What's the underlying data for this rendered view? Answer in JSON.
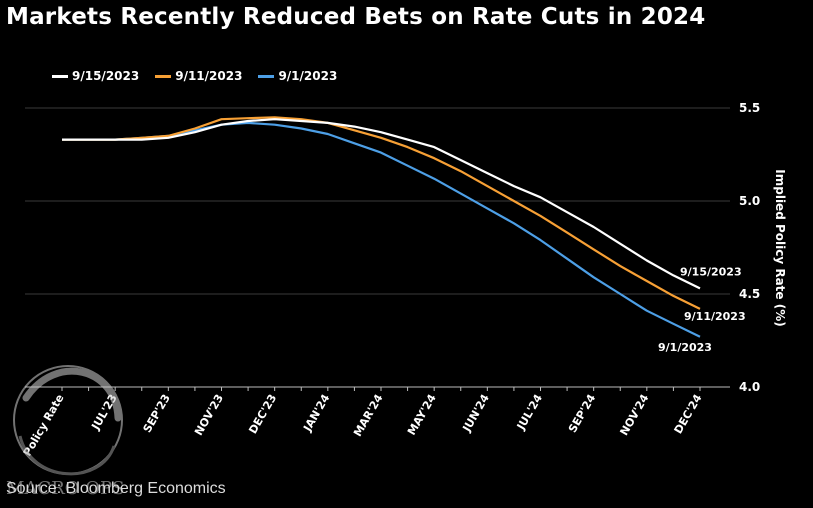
{
  "chart_data": {
    "type": "line",
    "title": "Markets Recently Reduced Bets on Rate Cuts in 2024",
    "ylabel": "Implied Policy Rate (%)",
    "xlabel": "",
    "ylim": [
      4.0,
      5.5
    ],
    "yticks": [
      "4.0",
      "4.5",
      "5.0",
      "5.5"
    ],
    "grid": true,
    "legend_position": "top-left",
    "categories": [
      "Policy Rate",
      "",
      "JUL'23",
      "",
      "SEP'23",
      "",
      "NOV'23",
      "",
      "DEC'23",
      "",
      "JAN'24",
      "",
      "MAR'24",
      "",
      "MAY'24",
      "",
      "JUN'24",
      "",
      "JUL'24",
      "",
      "SEP'24",
      "",
      "NOV'24",
      "",
      "DEC'24"
    ],
    "series": [
      {
        "name": "9/15/2023",
        "color": "#ffffff",
        "end_label": "9/15/2023",
        "values": [
          5.33,
          5.33,
          5.33,
          5.33,
          5.34,
          5.37,
          5.41,
          5.43,
          5.44,
          5.43,
          5.42,
          5.4,
          5.37,
          5.33,
          5.29,
          5.22,
          5.15,
          5.08,
          5.02,
          4.94,
          4.86,
          4.77,
          4.68,
          4.6,
          4.53
        ]
      },
      {
        "name": "9/11/2023",
        "color": "#f7a035",
        "end_label": "9/11/2023",
        "values": [
          5.33,
          5.33,
          5.33,
          5.34,
          5.35,
          5.39,
          5.44,
          5.445,
          5.45,
          5.44,
          5.42,
          5.38,
          5.34,
          5.29,
          5.23,
          5.16,
          5.08,
          5.0,
          4.92,
          4.83,
          4.74,
          4.65,
          4.57,
          4.49,
          4.42
        ]
      },
      {
        "name": "9/1/2023",
        "color": "#4d9fe6",
        "end_label": "9/1/2023",
        "values": [
          5.33,
          5.33,
          5.33,
          5.34,
          5.35,
          5.38,
          5.41,
          5.42,
          5.41,
          5.39,
          5.36,
          5.31,
          5.26,
          5.19,
          5.12,
          5.04,
          4.96,
          4.88,
          4.79,
          4.69,
          4.59,
          4.5,
          4.41,
          4.34,
          4.27
        ]
      }
    ]
  },
  "source": "Source: Bloomberg Economics",
  "watermark": "MACRO OPS"
}
